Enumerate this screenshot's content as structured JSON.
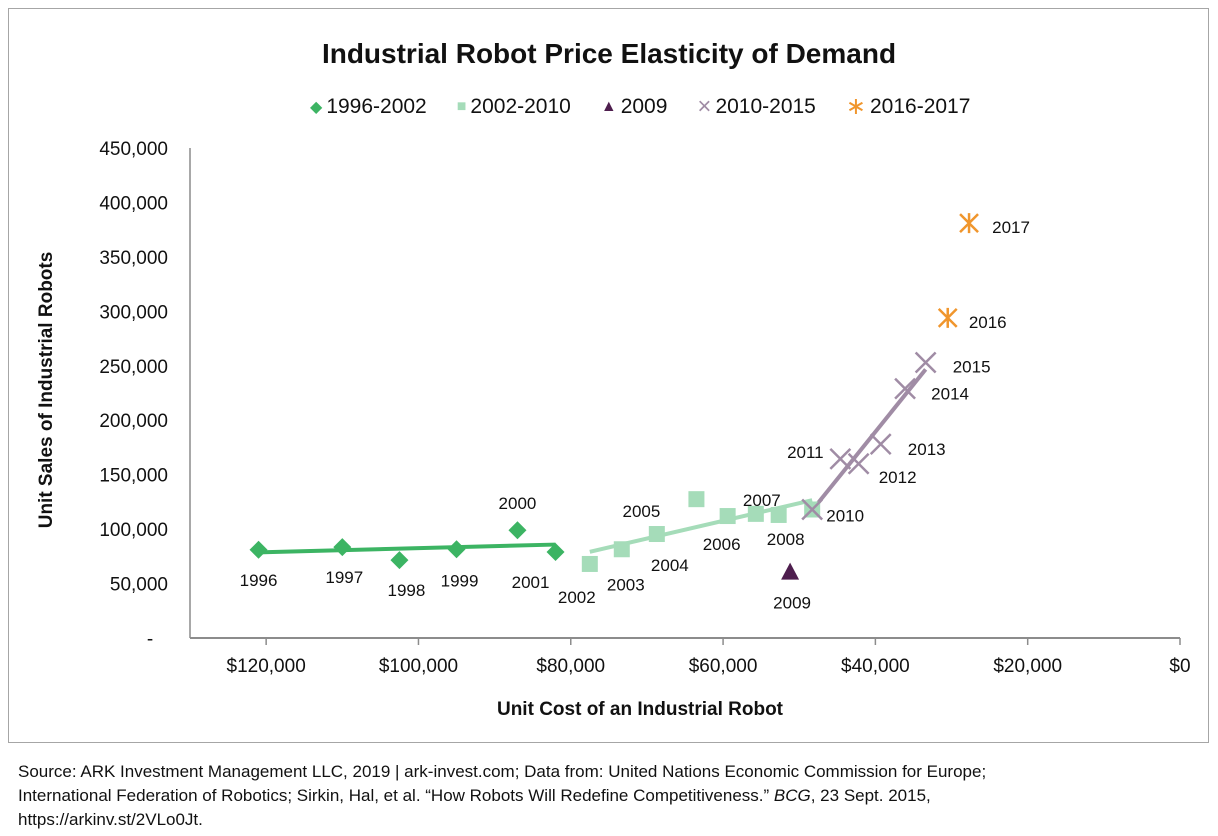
{
  "chart_data": {
    "type": "scatter",
    "title": "Industrial Robot Price Elasticity of Demand",
    "xlabel": "Unit Cost of an Industrial Robot",
    "ylabel": "Unit Sales of Industrial Robots",
    "xlim": [
      130000,
      0
    ],
    "ylim": [
      0,
      450000
    ],
    "x_ticks": [
      120000,
      100000,
      80000,
      60000,
      40000,
      20000,
      0
    ],
    "x_tick_labels": [
      "$120,000",
      "$100,000",
      "$80,000",
      "$60,000",
      "$40,000",
      "$20,000",
      "$0"
    ],
    "y_ticks": [
      0,
      50000,
      100000,
      150000,
      200000,
      250000,
      300000,
      350000,
      400000,
      450000
    ],
    "y_tick_labels": [
      "-",
      "50,000",
      "100,000",
      "150,000",
      "200,000",
      "250,000",
      "300,000",
      "350,000",
      "400,000",
      "450,000"
    ],
    "legend_position": "top",
    "series": [
      {
        "name": "1996-2002",
        "marker": "diamond",
        "color": "#3cb463",
        "trendline": true,
        "points": [
          {
            "label": "1996",
            "x": 121000,
            "y": 81000
          },
          {
            "label": "1997",
            "x": 110000,
            "y": 83500
          },
          {
            "label": "1998",
            "x": 102500,
            "y": 71500
          },
          {
            "label": "1999",
            "x": 95000,
            "y": 81500
          },
          {
            "label": "2000",
            "x": 87000,
            "y": 99000
          },
          {
            "label": "2001",
            "x": 82000,
            "y": 79000
          }
        ]
      },
      {
        "name": "2002-2010",
        "marker": "square",
        "color": "#a5dcb9",
        "trendline": true,
        "points": [
          {
            "label": "2002",
            "x": 77500,
            "y": 68000
          },
          {
            "label": "2003",
            "x": 73300,
            "y": 81500
          },
          {
            "label": "2004",
            "x": 68700,
            "y": 95500
          },
          {
            "label": "2005",
            "x": 63500,
            "y": 127500
          },
          {
            "label": "2006",
            "x": 59400,
            "y": 112000
          },
          {
            "label": "2007",
            "x": 55700,
            "y": 114000
          },
          {
            "label": "2008",
            "x": 52700,
            "y": 113000
          },
          {
            "label": "",
            "x": 48300,
            "y": 118000
          }
        ]
      },
      {
        "name": "2009",
        "marker": "triangle",
        "color": "#4e1e4e",
        "trendline": false,
        "points": [
          {
            "label": "2009",
            "x": 51200,
            "y": 60000
          }
        ]
      },
      {
        "name": "2010-2015",
        "marker": "x",
        "color": "#a08ca5",
        "trendline": true,
        "points": [
          {
            "label": "2010",
            "x": 48300,
            "y": 118000
          },
          {
            "label": "2011",
            "x": 44600,
            "y": 164500
          },
          {
            "label": "2012",
            "x": 42200,
            "y": 160000
          },
          {
            "label": "2013",
            "x": 39300,
            "y": 178000
          },
          {
            "label": "2014",
            "x": 36100,
            "y": 229000
          },
          {
            "label": "2015",
            "x": 33400,
            "y": 253000
          }
        ]
      },
      {
        "name": "2016-2017",
        "marker": "asterisk",
        "color": "#f0962d",
        "trendline": false,
        "points": [
          {
            "label": "2016",
            "x": 30500,
            "y": 294000
          },
          {
            "label": "2017",
            "x": 27700,
            "y": 381000
          }
        ]
      }
    ]
  },
  "footer": {
    "line1": "Source: ARK Investment Management LLC, 2019 | ark-invest.com; Data from: United Nations Economic Commission for Europe;",
    "line2a": "International Federation of Robotics; Sirkin, Hal, et al. “How Robots Will Redefine Competitiveness.” ",
    "line2b": "BCG",
    "line2c": ", 23 Sept. 2015,",
    "line3": "https://arkinv.st/2VLo0Jt."
  }
}
